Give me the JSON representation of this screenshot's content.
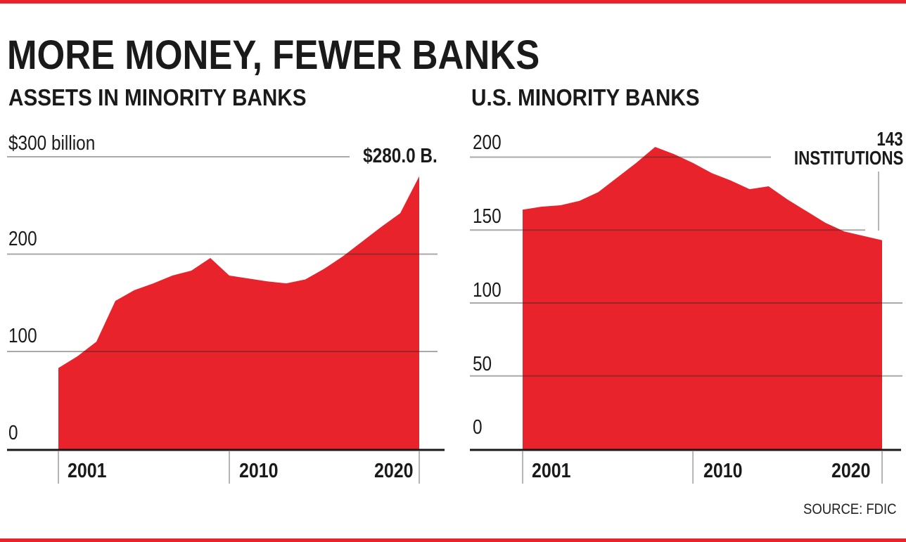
{
  "page": {
    "title": "MORE MONEY, FEWER BANKS",
    "source": "SOURCE: FDIC"
  },
  "colors": {
    "accent_red": "#E9232B",
    "grid_gray": "#A6A6A6",
    "axis_black": "#1A1A1A",
    "tick_gray": "#B5B5B5",
    "text_black": "#1A1A1A"
  },
  "chart_data": [
    {
      "type": "area",
      "title": "ASSETS IN MINORITY BANKS",
      "xlabel": "",
      "ylabel": "$ billions",
      "x": [
        2001,
        2002,
        2003,
        2004,
        2005,
        2006,
        2007,
        2008,
        2009,
        2010,
        2011,
        2012,
        2013,
        2014,
        2015,
        2016,
        2017,
        2018,
        2019,
        2020
      ],
      "values": [
        83,
        95,
        110,
        152,
        163,
        170,
        178,
        183,
        196,
        178,
        175,
        172,
        170,
        174,
        185,
        198,
        213,
        228,
        242,
        280
      ],
      "ylim": [
        0,
        300
      ],
      "grid": true,
      "legend": "none",
      "gridline_values": [
        300,
        200,
        100
      ],
      "ytick_labels": [
        "$300 billion",
        "200",
        "100",
        "0"
      ],
      "ytick_values": [
        300,
        200,
        100,
        0
      ],
      "xtick_labels": [
        "2001",
        "2010",
        "2020"
      ],
      "xtick_years": [
        2001,
        2010,
        2020
      ],
      "end_annotation": "$280.0 B."
    },
    {
      "type": "area",
      "title": "U.S. MINORITY BANKS",
      "xlabel": "",
      "ylabel": "institutions",
      "x": [
        2001,
        2002,
        2003,
        2004,
        2005,
        2006,
        2007,
        2008,
        2009,
        2010,
        2011,
        2012,
        2013,
        2014,
        2015,
        2016,
        2017,
        2018,
        2019,
        2020
      ],
      "values": [
        164,
        166,
        167,
        170,
        176,
        186,
        196,
        207,
        202,
        196,
        189,
        184,
        178,
        180,
        171,
        163,
        155,
        149,
        146,
        143
      ],
      "ylim": [
        0,
        215
      ],
      "grid": true,
      "legend": "none",
      "gridline_values": [
        200,
        150,
        100,
        50
      ],
      "ytick_labels": [
        "200",
        "150",
        "100",
        "50",
        "0"
      ],
      "ytick_values": [
        200,
        150,
        100,
        50,
        0
      ],
      "xtick_labels": [
        "2001",
        "2010",
        "2020"
      ],
      "xtick_years": [
        2001,
        2010,
        2020
      ],
      "end_annotation_value": "143",
      "end_annotation_label": "INSTITUTIONS"
    }
  ]
}
